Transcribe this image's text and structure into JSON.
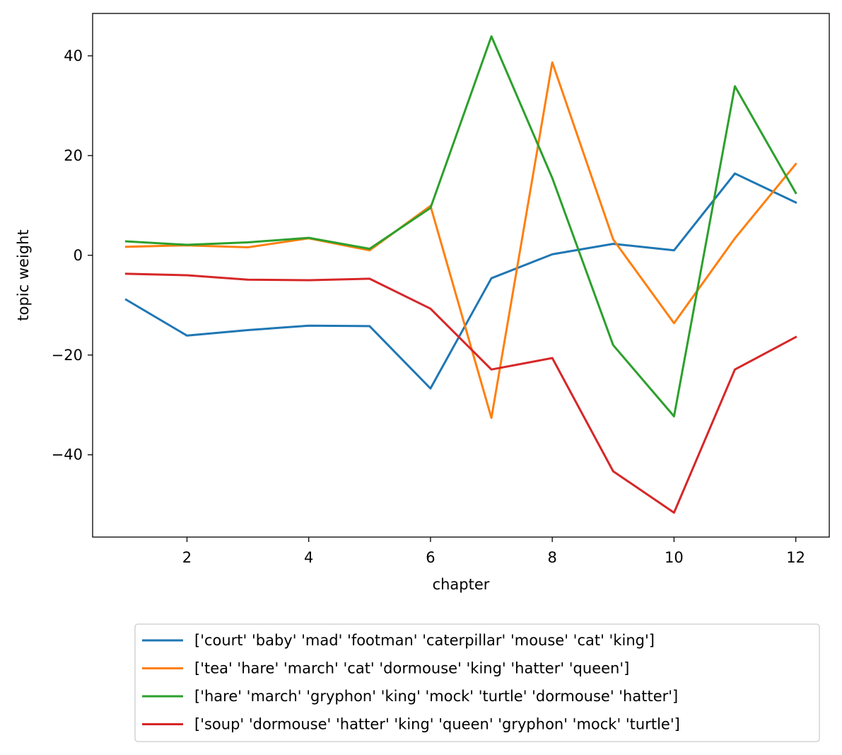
{
  "chart_data": {
    "type": "line",
    "xlabel": "chapter",
    "ylabel": "topic weight",
    "xlim": [
      0.45,
      12.55
    ],
    "ylim": [
      -56.5,
      48.5
    ],
    "xticks": [
      2,
      4,
      6,
      8,
      10,
      12
    ],
    "yticks": [
      -40,
      -20,
      0,
      20,
      40
    ],
    "grid": false,
    "legend_position": "below",
    "x": [
      1,
      2,
      3,
      4,
      5,
      6,
      7,
      8,
      9,
      10,
      11,
      12
    ],
    "series": [
      {
        "name": "['court' 'baby' 'mad' 'footman' 'caterpillar' 'mouse' 'cat' 'king']",
        "color": "#1f77b4",
        "values": [
          -8.9,
          -16.1,
          -15.0,
          -14.1,
          -14.2,
          -26.7,
          -4.6,
          0.2,
          2.3,
          1.0,
          16.4,
          10.6
        ]
      },
      {
        "name": "['tea' 'hare' 'march' 'cat' 'dormouse' 'king' 'hatter' 'queen']",
        "color": "#ff7f0e",
        "values": [
          1.7,
          2.0,
          1.6,
          3.4,
          1.0,
          9.9,
          -32.6,
          38.7,
          3.2,
          -13.6,
          3.4,
          18.3
        ]
      },
      {
        "name": "['hare' 'march' 'gryphon' 'king' 'mock' 'turtle' 'dormouse' 'hatter']",
        "color": "#2ca02c",
        "values": [
          2.8,
          2.1,
          2.6,
          3.5,
          1.3,
          9.5,
          43.9,
          15.5,
          -18.0,
          -32.3,
          33.9,
          12.5
        ]
      },
      {
        "name": "['soup' 'dormouse' 'hatter' 'king' 'queen' 'gryphon' 'mock' 'turtle']",
        "color": "#d62728",
        "values": [
          -3.7,
          -4.0,
          -4.9,
          -5.0,
          -4.7,
          -10.7,
          -22.9,
          -20.6,
          -43.3,
          -51.6,
          -22.9,
          -16.4
        ]
      }
    ]
  }
}
